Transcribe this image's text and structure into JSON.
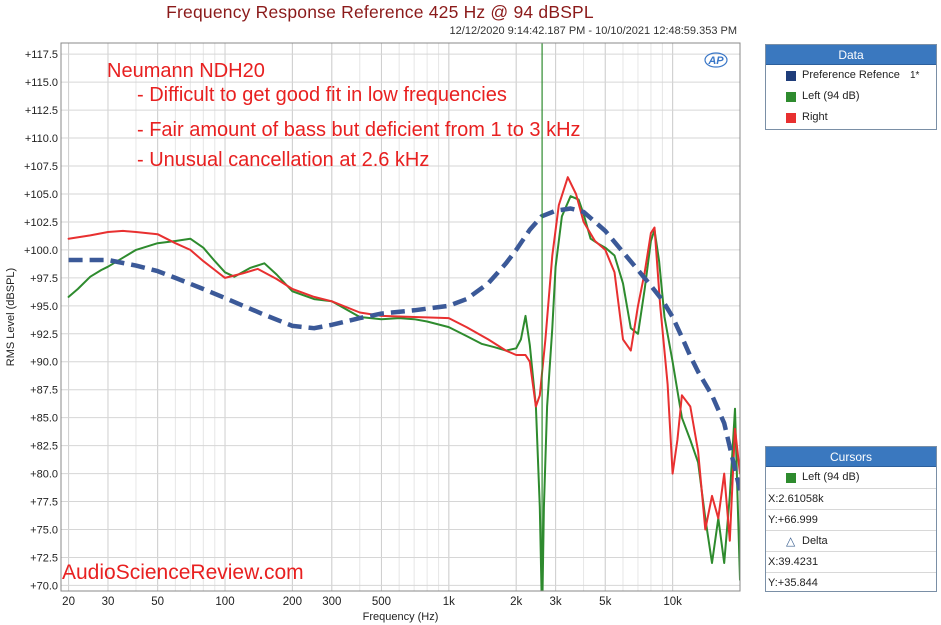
{
  "title": "Frequency Response Reference 425 Hz @ 94 dBSPL",
  "date_range": "12/12/2020 9:14:42.187 PM - 10/10/2021 12:48:59.353 PM",
  "logo_text": "AP",
  "watermark": "AudioScienceReview.com",
  "annotations": {
    "heading": "Neumann NDH20",
    "bullet1": "- Difficult to get good fit in low frequencies",
    "bullet2": "- Fair amount of bass but deficient from 1 to 3 kHz",
    "bullet3": "- Unusual cancellation at 2.6 kHz"
  },
  "data_panel": {
    "header": "Data",
    "items": [
      {
        "label": "Preference Refence",
        "suffix": "1*",
        "color": "#1f3d7a"
      },
      {
        "label": "Left (94 dB)",
        "suffix": "",
        "color": "#2e8b2e"
      },
      {
        "label": "Right",
        "suffix": "",
        "color": "#e83030"
      }
    ]
  },
  "cursors_panel": {
    "header": "Cursors",
    "series_label": "Left (94 dB)",
    "series_color": "#2e8b2e",
    "x": "X:2.61058k",
    "y": "Y:+66.999",
    "delta_label": "Delta",
    "dx": "X:39.4231",
    "dy": "Y:+35.844"
  },
  "chart_data": {
    "type": "line",
    "xlabel": "Frequency (Hz)",
    "ylabel": "RMS Level (dBSPL)",
    "xscale": "log",
    "xlim": [
      18.5,
      20000
    ],
    "ylim": [
      69.5,
      118.5
    ],
    "x_ticks": [
      20,
      30,
      50,
      100,
      200,
      300,
      500,
      1000,
      2000,
      3000,
      5000,
      10000
    ],
    "x_tick_labels": [
      "20",
      "30",
      "50",
      "100",
      "200",
      "300",
      "500",
      "1k",
      "2k",
      "3k",
      "5k",
      "10k"
    ],
    "y_ticks": [
      117.5,
      115,
      112.5,
      110,
      107.5,
      105,
      102.5,
      100,
      97.5,
      95,
      92.5,
      90,
      87.5,
      85,
      82.5,
      80,
      77.5,
      75,
      72.5,
      70
    ],
    "y_tick_labels": [
      "+117.5",
      "+115.0",
      "+112.5",
      "+110.0",
      "+107.5",
      "+105.0",
      "+102.5",
      "+100.0",
      "+97.5",
      "+95.0",
      "+92.5",
      "+90.0",
      "+87.5",
      "+85.0",
      "+82.5",
      "+80.0",
      "+77.5",
      "+75.0",
      "+72.5",
      "+70.0"
    ],
    "grid": true,
    "cursor_x": 2610.58,
    "series": [
      {
        "name": "Preference Refence",
        "color": "#3b5998",
        "style": "dashed",
        "points": [
          [
            20,
            99.1
          ],
          [
            30,
            99.1
          ],
          [
            40,
            98.6
          ],
          [
            50,
            98.1
          ],
          [
            60,
            97.5
          ],
          [
            80,
            96.5
          ],
          [
            100,
            95.7
          ],
          [
            150,
            94.2
          ],
          [
            200,
            93.2
          ],
          [
            250,
            93.0
          ],
          [
            300,
            93.3
          ],
          [
            400,
            93.9
          ],
          [
            500,
            94.3
          ],
          [
            700,
            94.6
          ],
          [
            1000,
            95.0
          ],
          [
            1200,
            95.6
          ],
          [
            1500,
            97.0
          ],
          [
            1800,
            98.8
          ],
          [
            2000,
            100.0
          ],
          [
            2300,
            101.8
          ],
          [
            2600,
            103.0
          ],
          [
            3000,
            103.5
          ],
          [
            3500,
            103.7
          ],
          [
            4000,
            103.4
          ],
          [
            5000,
            101.7
          ],
          [
            6000,
            99.8
          ],
          [
            7000,
            98.2
          ],
          [
            8000,
            96.8
          ],
          [
            9000,
            95.5
          ],
          [
            10000,
            94.0
          ],
          [
            11000,
            92.2
          ],
          [
            12000,
            90.5
          ],
          [
            13000,
            89.1
          ],
          [
            15000,
            87.0
          ],
          [
            17000,
            84.5
          ],
          [
            20000,
            78.5
          ]
        ]
      },
      {
        "name": "Left (94 dB)",
        "color": "#2e8b2e",
        "style": "solid",
        "points": [
          [
            20,
            95.8
          ],
          [
            22,
            96.5
          ],
          [
            25,
            97.6
          ],
          [
            28,
            98.2
          ],
          [
            30,
            98.5
          ],
          [
            35,
            99.3
          ],
          [
            40,
            100.0
          ],
          [
            50,
            100.6
          ],
          [
            60,
            100.8
          ],
          [
            70,
            101.0
          ],
          [
            80,
            100.2
          ],
          [
            90,
            99.0
          ],
          [
            100,
            98.0
          ],
          [
            110,
            97.6
          ],
          [
            130,
            98.4
          ],
          [
            150,
            98.8
          ],
          [
            170,
            97.8
          ],
          [
            200,
            96.3
          ],
          [
            250,
            95.6
          ],
          [
            300,
            95.4
          ],
          [
            400,
            94.0
          ],
          [
            500,
            93.8
          ],
          [
            600,
            93.9
          ],
          [
            700,
            93.8
          ],
          [
            800,
            93.6
          ],
          [
            1000,
            93.1
          ],
          [
            1200,
            92.3
          ],
          [
            1400,
            91.6
          ],
          [
            1600,
            91.3
          ],
          [
            1800,
            91.0
          ],
          [
            2000,
            91.2
          ],
          [
            2100,
            92.0
          ],
          [
            2200,
            94.1
          ],
          [
            2300,
            91.5
          ],
          [
            2450,
            86.0
          ],
          [
            2550,
            77.0
          ],
          [
            2610,
            67.0
          ],
          [
            2660,
            77.0
          ],
          [
            2750,
            86.0
          ],
          [
            2900,
            93.0
          ],
          [
            3000,
            98.5
          ],
          [
            3200,
            103.0
          ],
          [
            3500,
            104.8
          ],
          [
            3800,
            104.5
          ],
          [
            4000,
            103.2
          ],
          [
            4300,
            101.0
          ],
          [
            4700,
            100.5
          ],
          [
            5000,
            100.2
          ],
          [
            5500,
            99.5
          ],
          [
            6000,
            97.0
          ],
          [
            6500,
            93.0
          ],
          [
            7000,
            92.5
          ],
          [
            7500,
            96.5
          ],
          [
            8000,
            100.8
          ],
          [
            8300,
            101.8
          ],
          [
            8700,
            99.0
          ],
          [
            9200,
            94.0
          ],
          [
            10000,
            90.0
          ],
          [
            11000,
            85.0
          ],
          [
            12000,
            83.0
          ],
          [
            13000,
            81.0
          ],
          [
            14000,
            76.0
          ],
          [
            15000,
            72.0
          ],
          [
            16000,
            76.0
          ],
          [
            17000,
            72.0
          ],
          [
            18000,
            78.0
          ],
          [
            19000,
            85.8
          ],
          [
            19500,
            78.0
          ],
          [
            20000,
            70.5
          ]
        ]
      },
      {
        "name": "Right",
        "color": "#e83030",
        "style": "solid",
        "points": [
          [
            20,
            101.0
          ],
          [
            25,
            101.3
          ],
          [
            30,
            101.6
          ],
          [
            35,
            101.7
          ],
          [
            40,
            101.6
          ],
          [
            50,
            101.4
          ],
          [
            60,
            100.6
          ],
          [
            70,
            100.0
          ],
          [
            80,
            99.0
          ],
          [
            90,
            98.2
          ],
          [
            100,
            97.5
          ],
          [
            120,
            97.9
          ],
          [
            140,
            98.3
          ],
          [
            170,
            97.4
          ],
          [
            200,
            96.5
          ],
          [
            250,
            95.8
          ],
          [
            300,
            95.4
          ],
          [
            400,
            94.4
          ],
          [
            500,
            94.1
          ],
          [
            700,
            94.0
          ],
          [
            1000,
            93.9
          ],
          [
            1200,
            93.1
          ],
          [
            1500,
            92.0
          ],
          [
            1800,
            91.0
          ],
          [
            2000,
            90.6
          ],
          [
            2200,
            90.6
          ],
          [
            2300,
            90.0
          ],
          [
            2450,
            86.0
          ],
          [
            2550,
            87.0
          ],
          [
            2700,
            92.0
          ],
          [
            2900,
            99.5
          ],
          [
            3100,
            104.0
          ],
          [
            3400,
            106.5
          ],
          [
            3700,
            105.0
          ],
          [
            4000,
            102.5
          ],
          [
            4500,
            100.8
          ],
          [
            5000,
            100.0
          ],
          [
            5500,
            98.0
          ],
          [
            6000,
            92.0
          ],
          [
            6500,
            91.0
          ],
          [
            7000,
            95.0
          ],
          [
            7500,
            98.0
          ],
          [
            8000,
            101.5
          ],
          [
            8300,
            102.0
          ],
          [
            8800,
            95.0
          ],
          [
            9500,
            88.0
          ],
          [
            10000,
            80.0
          ],
          [
            10500,
            83.0
          ],
          [
            11000,
            87.0
          ],
          [
            12000,
            86.0
          ],
          [
            13000,
            82.0
          ],
          [
            14000,
            75.0
          ],
          [
            15000,
            78.0
          ],
          [
            16000,
            76.0
          ],
          [
            17000,
            80.0
          ],
          [
            18000,
            74.0
          ],
          [
            19000,
            84.0
          ],
          [
            20000,
            80.0
          ]
        ]
      }
    ]
  }
}
